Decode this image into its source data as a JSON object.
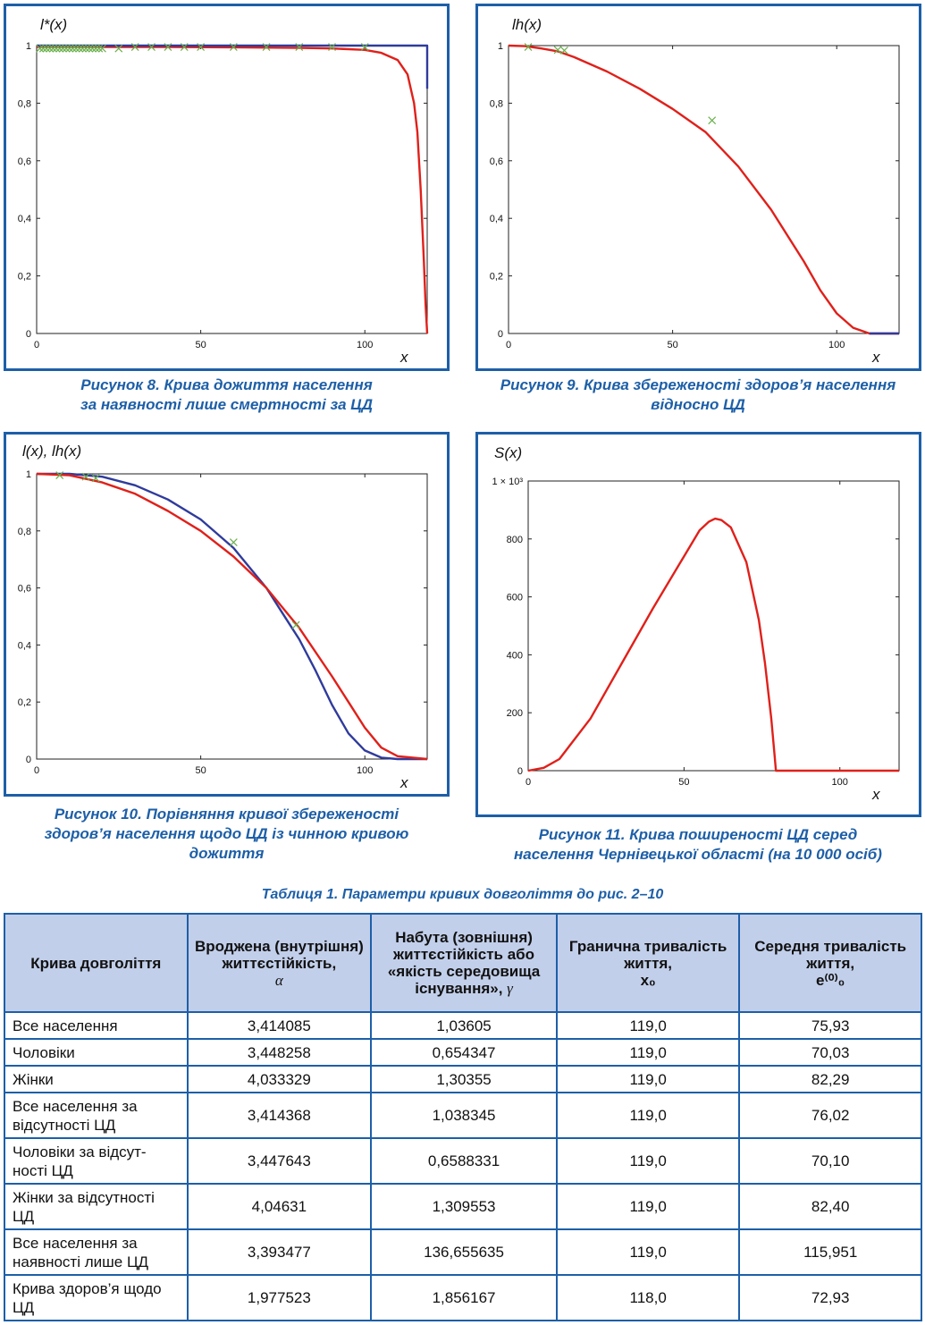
{
  "figures": [
    {
      "id": "fig8",
      "y_label": "l*(x)",
      "x_label": "x",
      "y_ticks": [
        "1",
        "0,8",
        "0,6",
        "0,4",
        "0,2",
        "0"
      ],
      "x_ticks": [
        "0",
        "50",
        "100"
      ],
      "caption": [
        "Рисунок 8. Крива дожиття населення",
        "за наявності лише смертності за ЦД"
      ]
    },
    {
      "id": "fig9",
      "y_label": "lh(x)",
      "x_label": "x",
      "y_ticks": [
        "1",
        "0,8",
        "0,6",
        "0,4",
        "0,2",
        "0"
      ],
      "x_ticks": [
        "0",
        "50",
        "100"
      ],
      "caption": [
        "Рисунок 9. Крива збереженості здоров’я населення",
        "відносно ЦД"
      ]
    },
    {
      "id": "fig10",
      "y_label": "l(x), lh(x)",
      "x_label": "x",
      "y_ticks": [
        "1",
        "0,8",
        "0,6",
        "0,4",
        "0,2",
        "0"
      ],
      "x_ticks": [
        "0",
        "50",
        "100"
      ],
      "caption": [
        "Рисунок 10. Порівняння кривої збереженості",
        "здоров’я населення щодо ЦД із чинною кривою",
        "дожиття"
      ]
    },
    {
      "id": "fig11",
      "y_label": "S(x)",
      "x_label": "x",
      "y_ticks": [
        "1 × 10³",
        "800",
        "600",
        "400",
        "200",
        "0"
      ],
      "x_ticks": [
        "0",
        "50",
        "100"
      ],
      "caption": [
        "Рисунок 11. Крива поширеності ЦД серед",
        "населення Чернівецької області (на 10 000 осіб)"
      ]
    }
  ],
  "chart_data": [
    {
      "type": "line",
      "title": "Рисунок 8. Крива дожиття населення за наявності лише смертності за ЦД",
      "xlabel": "x",
      "ylabel": "l*(x)",
      "xlim": [
        0,
        119
      ],
      "ylim": [
        0,
        1
      ],
      "series": [
        {
          "color": "#e0201a",
          "x": [
            0,
            20,
            40,
            60,
            80,
            90,
            100,
            105,
            110,
            113,
            115,
            116,
            117,
            118,
            118.5,
            119
          ],
          "y": [
            0.995,
            0.995,
            0.995,
            0.994,
            0.992,
            0.99,
            0.985,
            0.975,
            0.95,
            0.9,
            0.8,
            0.7,
            0.5,
            0.25,
            0.1,
            0
          ]
        },
        {
          "color": "#2f3b9c",
          "x": [
            0,
            119,
            119
          ],
          "y": [
            1,
            1,
            0.85
          ]
        }
      ],
      "markers": {
        "color": "#6ab04c",
        "symbol": "x",
        "x": [
          1,
          2,
          3,
          4,
          5,
          6,
          7,
          8,
          9,
          10,
          11,
          12,
          13,
          14,
          15,
          16,
          17,
          18,
          19,
          20,
          25,
          30,
          35,
          40,
          45,
          50,
          60,
          70,
          80,
          90,
          100
        ],
        "y": [
          0.99,
          0.99,
          0.99,
          0.99,
          0.99,
          0.99,
          0.99,
          0.99,
          0.99,
          0.99,
          0.99,
          0.99,
          0.99,
          0.99,
          0.99,
          0.99,
          0.99,
          0.99,
          0.99,
          0.99,
          0.99,
          0.995,
          0.995,
          0.995,
          0.995,
          0.995,
          0.995,
          0.995,
          0.995,
          0.995,
          0.995
        ]
      }
    },
    {
      "type": "line",
      "title": "Рисунок 9. Крива збереженості здоров’я населення відносно ЦД",
      "xlabel": "x",
      "ylabel": "lh(x)",
      "xlim": [
        0,
        119
      ],
      "ylim": [
        0,
        1
      ],
      "series": [
        {
          "color": "#e0201a",
          "x": [
            0,
            5,
            10,
            15,
            20,
            30,
            40,
            50,
            60,
            70,
            80,
            90,
            95,
            100,
            105,
            110,
            119
          ],
          "y": [
            1,
            0.998,
            0.99,
            0.98,
            0.96,
            0.91,
            0.85,
            0.78,
            0.7,
            0.58,
            0.43,
            0.25,
            0.15,
            0.07,
            0.02,
            0.0,
            0.0
          ]
        },
        {
          "color": "#2f3b9c",
          "x": [
            110,
            119
          ],
          "y": [
            0.0,
            0.0
          ]
        }
      ],
      "markers": {
        "color": "#6ab04c",
        "symbol": "x",
        "x": [
          6,
          15,
          17,
          62
        ],
        "y": [
          0.995,
          0.985,
          0.983,
          0.74
        ]
      }
    },
    {
      "type": "line",
      "title": "Рисунок 10. Порівняння кривої збереженості здоров’я населення щодо ЦД із чинною кривою дожиття",
      "xlabel": "x",
      "ylabel": "l(x), lh(x)",
      "xlim": [
        0,
        119
      ],
      "ylim": [
        0,
        1
      ],
      "series": [
        {
          "color": "#2f3b9c",
          "x": [
            0,
            10,
            20,
            30,
            40,
            50,
            60,
            70,
            75,
            80,
            85,
            90,
            95,
            100,
            105,
            110,
            119
          ],
          "y": [
            1,
            1,
            0.99,
            0.96,
            0.91,
            0.84,
            0.74,
            0.6,
            0.51,
            0.42,
            0.31,
            0.19,
            0.09,
            0.03,
            0.005,
            0,
            0
          ]
        },
        {
          "color": "#e0201a",
          "x": [
            0,
            10,
            20,
            30,
            40,
            50,
            60,
            70,
            80,
            90,
            95,
            100,
            105,
            110,
            119
          ],
          "y": [
            1,
            0.995,
            0.97,
            0.93,
            0.87,
            0.8,
            0.71,
            0.6,
            0.46,
            0.29,
            0.2,
            0.11,
            0.04,
            0.01,
            0
          ]
        }
      ],
      "markers": {
        "color": "#6ab04c",
        "symbol": "x",
        "x": [
          7,
          15,
          18,
          60,
          79
        ],
        "y": [
          0.995,
          0.99,
          0.985,
          0.76,
          0.47
        ]
      }
    },
    {
      "type": "line",
      "title": "Рисунок 11. Крива поширеності ЦД серед населення Чернівецької області (на 10 000 осіб)",
      "xlabel": "x",
      "ylabel": "S(x)",
      "xlim": [
        0,
        119
      ],
      "ylim": [
        0,
        1000
      ],
      "series": [
        {
          "color": "#e0201a",
          "x": [
            0,
            5,
            10,
            20,
            30,
            40,
            50,
            55,
            58,
            60,
            62,
            65,
            70,
            74,
            76,
            78,
            79,
            79.5,
            80,
            119
          ],
          "y": [
            0,
            10,
            40,
            180,
            370,
            560,
            740,
            830,
            860,
            870,
            865,
            840,
            720,
            520,
            370,
            180,
            60,
            0,
            0,
            0
          ]
        }
      ]
    }
  ],
  "table": {
    "title": "Таблиця 1. Параметри кривих довголіття до рис. 2–10",
    "headers": [
      {
        "text": "Крива довголіття",
        "sym": "",
        "sub": ""
      },
      {
        "text": "Вроджена (внутрішня) життєстійкість,",
        "sym": "α",
        "sub": ""
      },
      {
        "text": "Набута (зовнішня) життєстійкість або «якість середовища існування»,",
        "sym": "γ",
        "sub": ""
      },
      {
        "text": "Гранична тривалість життя,",
        "sym": "x₀",
        "sub": ""
      },
      {
        "text": "Середня тривалість життя,",
        "sym": "e⁽⁰⁾₀",
        "sub": ""
      }
    ],
    "rows": [
      [
        "Все населення",
        "3,414085",
        "1,03605",
        "119,0",
        "75,93"
      ],
      [
        "Чоловіки",
        "3,448258",
        "0,654347",
        "119,0",
        "70,03"
      ],
      [
        "Жінки",
        "4,033329",
        "1,30355",
        "119,0",
        "82,29"
      ],
      [
        "Все населення за відсутності ЦД",
        "3,414368",
        "1,038345",
        "119,0",
        "76,02"
      ],
      [
        "Чоловіки за відсут-ності ЦД",
        "3,447643",
        "0,6588331",
        "119,0",
        "70,10"
      ],
      [
        "Жінки за відсутності ЦД",
        "4,04631",
        "1,309553",
        "119,0",
        "82,40"
      ],
      [
        "Все населення за наявності лише ЦД",
        "3,393477",
        "136,655635",
        "119,0",
        "115,951"
      ],
      [
        "Крива здоров’я щодо ЦД",
        "1,977523",
        "1,856167",
        "118,0",
        "72,93"
      ]
    ]
  }
}
